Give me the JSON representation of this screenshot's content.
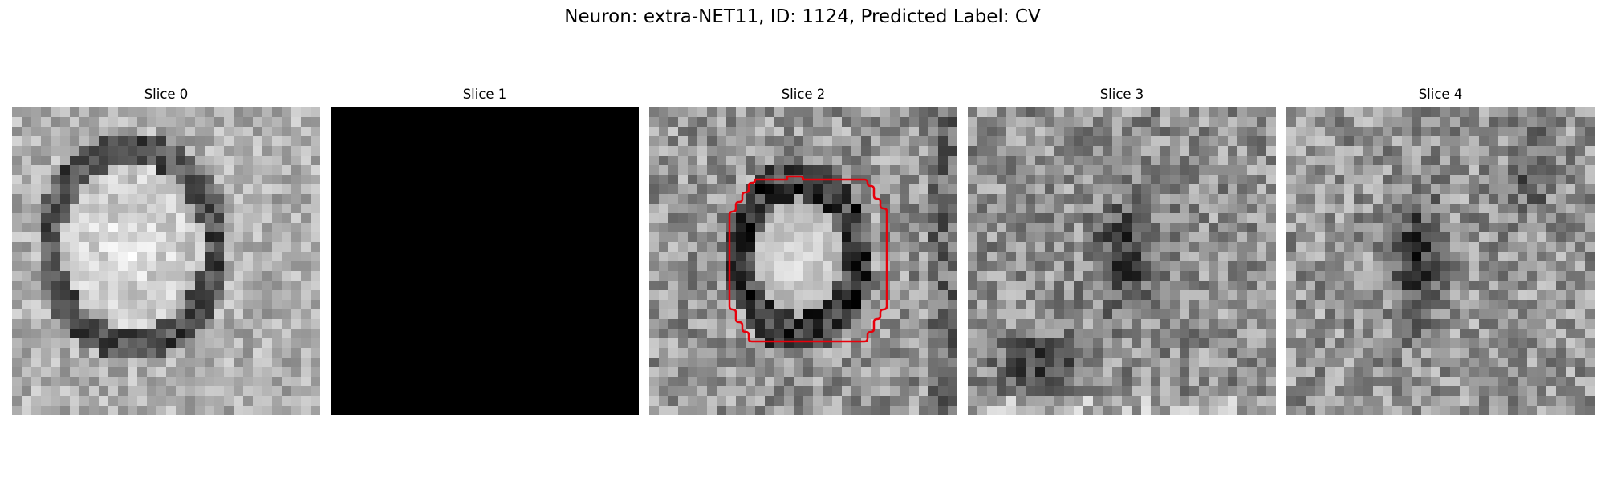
{
  "figure": {
    "title": "Neuron: extra-NET11, ID: 1124, Predicted Label: CV"
  },
  "panels": [
    {
      "title": "Slice 0",
      "image": "em-slice-ring-cell",
      "blank": false
    },
    {
      "title": "Slice 1",
      "image": "blank-black",
      "blank": true
    },
    {
      "title": "Slice 2",
      "image": "em-slice-ring-cell-with-contour",
      "blank": false,
      "contour_color": "#e8000b"
    },
    {
      "title": "Slice 3",
      "image": "em-slice-dark-blob",
      "blank": false
    },
    {
      "title": "Slice 4",
      "image": "em-slice-dark-streak",
      "blank": false
    }
  ]
}
